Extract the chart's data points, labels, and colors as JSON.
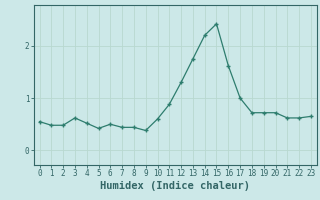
{
  "x": [
    0,
    1,
    2,
    3,
    4,
    5,
    6,
    7,
    8,
    9,
    10,
    11,
    12,
    13,
    14,
    15,
    16,
    17,
    18,
    19,
    20,
    21,
    22,
    23
  ],
  "y": [
    0.55,
    0.48,
    0.48,
    0.62,
    0.52,
    0.42,
    0.5,
    0.44,
    0.44,
    0.38,
    0.6,
    0.88,
    1.3,
    1.75,
    2.2,
    2.42,
    1.62,
    1.0,
    0.72,
    0.72,
    0.72,
    0.62,
    0.62,
    0.65
  ],
  "xlabel": "Humidex (Indice chaleur)",
  "ylim": [
    -0.28,
    2.78
  ],
  "xlim": [
    -0.5,
    23.5
  ],
  "yticks": [
    0,
    1,
    2
  ],
  "xticks": [
    0,
    1,
    2,
    3,
    4,
    5,
    6,
    7,
    8,
    9,
    10,
    11,
    12,
    13,
    14,
    15,
    16,
    17,
    18,
    19,
    20,
    21,
    22,
    23
  ],
  "line_color": "#2e7d6e",
  "marker_color": "#2e7d6e",
  "bg_color": "#cce8e8",
  "grid_color": "#b8d8d0",
  "axis_color": "#336666",
  "tick_label_fontsize": 5.5,
  "xlabel_fontsize": 7.5
}
